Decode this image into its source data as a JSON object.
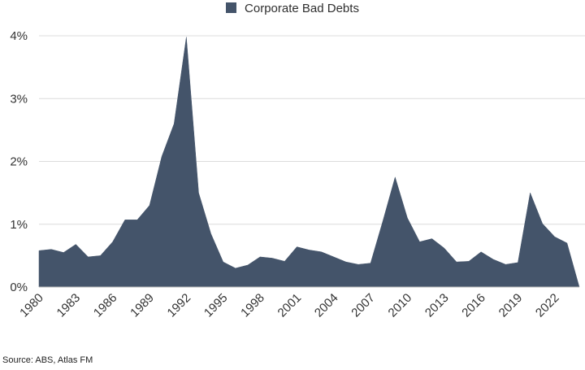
{
  "chart_data": {
    "type": "area",
    "legend": {
      "label": "Corporate Bad Debts",
      "position": "top-center"
    },
    "series": [
      {
        "name": "Corporate Bad Debts",
        "color": "#44546a",
        "x": [
          1980,
          1981,
          1982,
          1983,
          1984,
          1985,
          1986,
          1987,
          1988,
          1989,
          1990,
          1991,
          1992,
          1993,
          1994,
          1995,
          1996,
          1997,
          1998,
          1999,
          2000,
          2001,
          2002,
          2003,
          2004,
          2005,
          2006,
          2007,
          2008,
          2009,
          2010,
          2011,
          2012,
          2013,
          2014,
          2015,
          2016,
          2017,
          2018,
          2019,
          2020,
          2021,
          2022,
          2023,
          2024
        ],
        "values": [
          0.58,
          0.6,
          0.55,
          0.68,
          0.48,
          0.5,
          0.72,
          1.07,
          1.07,
          1.3,
          2.08,
          2.6,
          3.98,
          1.5,
          0.85,
          0.4,
          0.3,
          0.35,
          0.48,
          0.46,
          0.41,
          0.64,
          0.59,
          0.56,
          0.48,
          0.4,
          0.36,
          0.38,
          1.05,
          1.75,
          1.1,
          0.72,
          0.77,
          0.62,
          0.4,
          0.41,
          0.56,
          0.44,
          0.36,
          0.39,
          1.5,
          1.01,
          0.8,
          0.7,
          0.0
        ]
      }
    ],
    "x_tick_labels": [
      "1980",
      "1983",
      "1986",
      "1989",
      "1992",
      "1995",
      "1998",
      "2001",
      "2004",
      "2007",
      "2010",
      "2013",
      "2016",
      "2019",
      "2022"
    ],
    "y_tick_labels": [
      "0%",
      "1%",
      "2%",
      "3%",
      "4%"
    ],
    "ylim": [
      0,
      4
    ],
    "xlim": [
      1980,
      2024
    ],
    "grid": true
  },
  "source": "Source: ABS, Atlas FM"
}
